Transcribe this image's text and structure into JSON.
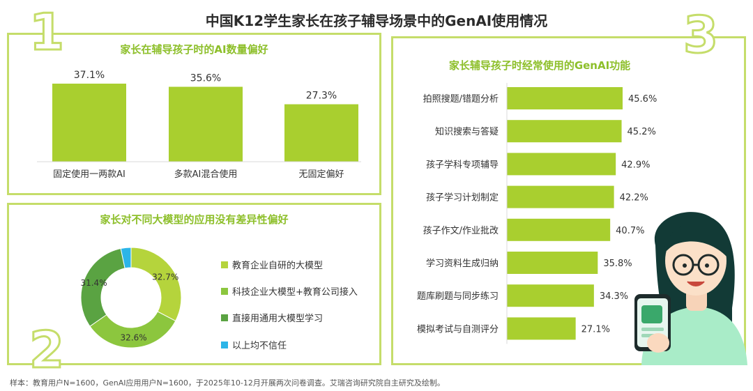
{
  "title": "中国K12学生家长在孩子辅导场景中的GenAI使用情况",
  "footer": "样本：教育用户N=1600，GenAI应用用户N=1600，于2025年10-12月开展两次问卷调查。艾瑞咨询研究院自主研究及绘制。",
  "panel_numbers": {
    "p1": "1",
    "p2": "2",
    "p3": "3"
  },
  "colors": {
    "accent": "#a9cf2f",
    "border": "#c5dd6a",
    "title_green": "#8dbf2a",
    "pie_1": "#b5d43c",
    "pie_2": "#8cc63e",
    "pie_3": "#5aa342",
    "pie_4": "#2cb5e8"
  },
  "chart_data": [
    {
      "type": "bar",
      "title": "家长在辅导孩子时的AI数量偏好",
      "categories": [
        "固定使用一两款AI",
        "多款AI混合使用",
        "无固定偏好"
      ],
      "values": [
        37.1,
        35.6,
        27.3
      ],
      "labels": [
        "37.1%",
        "35.6%",
        "27.3%"
      ],
      "ylim": [
        0,
        40
      ]
    },
    {
      "type": "pie",
      "title": "家长对不同大模型的应用没有差异性偏好",
      "categories": [
        "教育企业自研的大模型",
        "科技企业大模型+教育公司接入",
        "直接用通用大模型学习",
        "以上均不信任"
      ],
      "values": [
        32.7,
        32.6,
        31.4,
        3.3
      ],
      "labels": [
        "32.7%",
        "32.6%",
        "31.4%",
        ""
      ]
    },
    {
      "type": "bar",
      "orientation": "horizontal",
      "title": "家长辅导孩子时经常使用的GenAI功能",
      "categories": [
        "拍照搜题/错题分析",
        "知识搜索与答疑",
        "孩子学科专项辅导",
        "孩子学习计划制定",
        "孩子作文/作业批改",
        "学习资料生成归纳",
        "题库刷题与同步练习",
        "模拟考试与自测评分"
      ],
      "values": [
        45.6,
        45.2,
        42.9,
        42.2,
        40.7,
        35.8,
        34.3,
        27.1
      ],
      "labels": [
        "45.6%",
        "45.2%",
        "42.9%",
        "42.2%",
        "40.7%",
        "35.8%",
        "34.3%",
        "27.1%"
      ],
      "xlim": [
        0,
        60
      ]
    }
  ]
}
